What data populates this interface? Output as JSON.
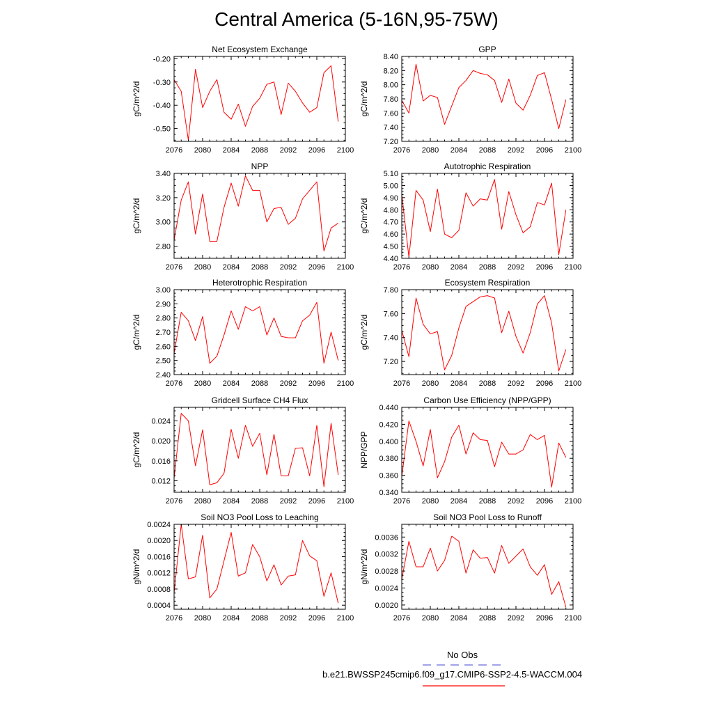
{
  "page": {
    "title": "Central America (5-16N,95-75W)"
  },
  "legend": {
    "obs_label": "No Obs",
    "obs_color": "#6a6adf",
    "case_label": "b.e21.BWSSP245cmip6.f09_g17.CMIP6-SSP2-4.5-WACCM.004",
    "case_color": "#ff0000"
  },
  "chart_data": [
    {
      "type": "line",
      "title": "Net Ecosystem Exchange",
      "ylabel": "gC/m^2/d",
      "xlim": [
        2076,
        2100
      ],
      "xticks": [
        2076,
        2080,
        2084,
        2088,
        2092,
        2096,
        2100
      ],
      "ylim": [
        -0.555,
        -0.19
      ],
      "yticks": [
        -0.5,
        -0.4,
        -0.3,
        -0.2
      ],
      "ytick_labels": [
        "-0.50",
        "-0.40",
        "-0.30",
        "-0.20"
      ],
      "color": "#ff0000",
      "x": [
        2076,
        2077,
        2078,
        2079,
        2080,
        2081,
        2082,
        2083,
        2084,
        2085,
        2086,
        2087,
        2088,
        2089,
        2090,
        2091,
        2092,
        2093,
        2094,
        2095,
        2096,
        2097,
        2098,
        2099
      ],
      "values": [
        -0.29,
        -0.34,
        -0.55,
        -0.245,
        -0.41,
        -0.34,
        -0.29,
        -0.43,
        -0.46,
        -0.395,
        -0.49,
        -0.405,
        -0.37,
        -0.31,
        -0.3,
        -0.44,
        -0.305,
        -0.34,
        -0.39,
        -0.43,
        -0.41,
        -0.26,
        -0.23,
        -0.47
      ]
    },
    {
      "type": "line",
      "title": "GPP",
      "ylabel": "gC/m^2/d",
      "xlim": [
        2076,
        2100
      ],
      "xticks": [
        2076,
        2080,
        2084,
        2088,
        2092,
        2096,
        2100
      ],
      "ylim": [
        7.2,
        8.4
      ],
      "yticks": [
        7.2,
        7.4,
        7.6,
        7.8,
        8.0,
        8.2,
        8.4
      ],
      "ytick_labels": [
        "7.20",
        "7.40",
        "7.60",
        "7.80",
        "8.00",
        "8.20",
        "8.40"
      ],
      "color": "#ff0000",
      "x": [
        2076,
        2077,
        2078,
        2079,
        2080,
        2081,
        2082,
        2083,
        2084,
        2085,
        2086,
        2087,
        2088,
        2089,
        2090,
        2091,
        2092,
        2093,
        2094,
        2095,
        2096,
        2097,
        2098,
        2099
      ],
      "values": [
        7.78,
        7.6,
        8.29,
        7.77,
        7.85,
        7.82,
        7.44,
        7.7,
        7.96,
        8.06,
        8.2,
        8.16,
        8.14,
        8.06,
        7.75,
        8.08,
        7.74,
        7.64,
        7.85,
        8.13,
        8.17,
        7.79,
        7.38,
        7.79
      ]
    },
    {
      "type": "line",
      "title": "NPP",
      "ylabel": "gC/m^2/d",
      "xlim": [
        2076,
        2100
      ],
      "xticks": [
        2076,
        2080,
        2084,
        2088,
        2092,
        2096,
        2100
      ],
      "ylim": [
        2.7,
        3.4
      ],
      "yticks": [
        2.8,
        3.0,
        3.2,
        3.4
      ],
      "ytick_labels": [
        "2.80",
        "3.00",
        "3.20",
        "3.40"
      ],
      "color": "#ff0000",
      "x": [
        2076,
        2077,
        2078,
        2079,
        2080,
        2081,
        2082,
        2083,
        2084,
        2085,
        2086,
        2087,
        2088,
        2089,
        2090,
        2091,
        2092,
        2093,
        2094,
        2095,
        2096,
        2097,
        2098,
        2099
      ],
      "values": [
        2.85,
        3.18,
        3.33,
        2.9,
        3.23,
        2.84,
        2.84,
        3.12,
        3.32,
        3.13,
        3.38,
        3.26,
        3.26,
        3.0,
        3.11,
        3.12,
        2.98,
        3.03,
        3.19,
        3.26,
        3.33,
        2.76,
        2.95,
        2.99
      ]
    },
    {
      "type": "line",
      "title": "Autotrophic Respiration",
      "ylabel": "gC/m^2/d",
      "xlim": [
        2076,
        2100
      ],
      "xticks": [
        2076,
        2080,
        2084,
        2088,
        2092,
        2096,
        2100
      ],
      "ylim": [
        4.4,
        5.1
      ],
      "yticks": [
        4.4,
        4.5,
        4.6,
        4.7,
        4.8,
        4.9,
        5.0,
        5.1
      ],
      "ytick_labels": [
        "4.40",
        "4.50",
        "4.60",
        "4.70",
        "4.80",
        "4.90",
        "5.00",
        "5.10"
      ],
      "color": "#ff0000",
      "x": [
        2076,
        2077,
        2078,
        2079,
        2080,
        2081,
        2082,
        2083,
        2084,
        2085,
        2086,
        2087,
        2088,
        2089,
        2090,
        2091,
        2092,
        2093,
        2094,
        2095,
        2096,
        2097,
        2098,
        2099
      ],
      "values": [
        4.93,
        4.41,
        4.96,
        4.88,
        4.62,
        4.97,
        4.6,
        4.57,
        4.63,
        4.94,
        4.83,
        4.89,
        4.88,
        5.05,
        4.64,
        4.95,
        4.76,
        4.61,
        4.66,
        4.86,
        4.84,
        5.02,
        4.43,
        4.8
      ]
    },
    {
      "type": "line",
      "title": "Heterotrophic Respiration",
      "ylabel": "gC/m^2/d",
      "xlim": [
        2076,
        2100
      ],
      "xticks": [
        2076,
        2080,
        2084,
        2088,
        2092,
        2096,
        2100
      ],
      "ylim": [
        2.4,
        3.0
      ],
      "yticks": [
        2.4,
        2.5,
        2.6,
        2.7,
        2.8,
        2.9,
        3.0
      ],
      "ytick_labels": [
        "2.40",
        "2.50",
        "2.60",
        "2.70",
        "2.80",
        "2.90",
        "3.00"
      ],
      "color": "#ff0000",
      "x": [
        2076,
        2077,
        2078,
        2079,
        2080,
        2081,
        2082,
        2083,
        2084,
        2085,
        2086,
        2087,
        2088,
        2089,
        2090,
        2091,
        2092,
        2093,
        2094,
        2095,
        2096,
        2097,
        2098,
        2099
      ],
      "values": [
        2.55,
        2.84,
        2.78,
        2.64,
        2.81,
        2.48,
        2.53,
        2.68,
        2.85,
        2.72,
        2.88,
        2.85,
        2.88,
        2.68,
        2.8,
        2.67,
        2.66,
        2.66,
        2.78,
        2.82,
        2.91,
        2.48,
        2.7,
        2.5
      ]
    },
    {
      "type": "line",
      "title": "Ecosystem Respiration",
      "ylabel": "gC/m^2/d",
      "xlim": [
        2076,
        2100
      ],
      "xticks": [
        2076,
        2080,
        2084,
        2088,
        2092,
        2096,
        2100
      ],
      "ylim": [
        7.09,
        7.8
      ],
      "yticks": [
        7.2,
        7.4,
        7.6,
        7.8
      ],
      "ytick_labels": [
        "7.20",
        "7.40",
        "7.60",
        "7.80"
      ],
      "color": "#ff0000",
      "x": [
        2076,
        2077,
        2078,
        2079,
        2080,
        2081,
        2082,
        2083,
        2084,
        2085,
        2086,
        2087,
        2088,
        2089,
        2090,
        2091,
        2092,
        2093,
        2094,
        2095,
        2096,
        2097,
        2098,
        2099
      ],
      "values": [
        7.46,
        7.24,
        7.73,
        7.51,
        7.43,
        7.45,
        7.13,
        7.25,
        7.48,
        7.66,
        7.7,
        7.74,
        7.75,
        7.73,
        7.44,
        7.62,
        7.41,
        7.27,
        7.44,
        7.68,
        7.75,
        7.52,
        7.12,
        7.3
      ]
    },
    {
      "type": "line",
      "title": "Gridcell Surface CH4 Flux",
      "ylabel": "gC/m^2/d",
      "xlim": [
        2076,
        2100
      ],
      "xticks": [
        2076,
        2080,
        2084,
        2088,
        2092,
        2096,
        2100
      ],
      "ylim": [
        0.0097,
        0.0267
      ],
      "yticks": [
        0.012,
        0.016,
        0.02,
        0.024
      ],
      "ytick_labels": [
        "0.012",
        "0.016",
        "0.020",
        "0.024"
      ],
      "color": "#ff0000",
      "x": [
        2076,
        2077,
        2078,
        2079,
        2080,
        2081,
        2082,
        2083,
        2084,
        2085,
        2086,
        2087,
        2088,
        2089,
        2090,
        2091,
        2092,
        2093,
        2094,
        2095,
        2096,
        2097,
        2098,
        2099
      ],
      "values": [
        0.0125,
        0.0255,
        0.024,
        0.015,
        0.0222,
        0.0112,
        0.0116,
        0.0135,
        0.0223,
        0.0165,
        0.0231,
        0.0189,
        0.0215,
        0.0132,
        0.0213,
        0.013,
        0.013,
        0.0185,
        0.0186,
        0.013,
        0.0231,
        0.0108,
        0.0235,
        0.0132
      ]
    },
    {
      "type": "line",
      "title": "Carbon Use Efficiency (NPP/GPP)",
      "ylabel": "NPP/GPP",
      "xlim": [
        2076,
        2100
      ],
      "xticks": [
        2076,
        2080,
        2084,
        2088,
        2092,
        2096,
        2100
      ],
      "ylim": [
        0.34,
        0.44
      ],
      "yticks": [
        0.34,
        0.36,
        0.38,
        0.4,
        0.42,
        0.44
      ],
      "ytick_labels": [
        "0.340",
        "0.360",
        "0.380",
        "0.400",
        "0.420",
        "0.440"
      ],
      "color": "#ff0000",
      "x": [
        2076,
        2077,
        2078,
        2079,
        2080,
        2081,
        2082,
        2083,
        2084,
        2085,
        2086,
        2087,
        2088,
        2089,
        2090,
        2091,
        2092,
        2093,
        2094,
        2095,
        2096,
        2097,
        2098,
        2099
      ],
      "values": [
        0.358,
        0.424,
        0.4,
        0.371,
        0.414,
        0.357,
        0.376,
        0.405,
        0.419,
        0.385,
        0.41,
        0.402,
        0.401,
        0.37,
        0.399,
        0.385,
        0.385,
        0.39,
        0.408,
        0.402,
        0.407,
        0.346,
        0.398,
        0.381
      ]
    },
    {
      "type": "line",
      "title": "Soil NO3 Pool Loss to Leaching",
      "ylabel": "gN/m^2/d",
      "xlim": [
        2076,
        2100
      ],
      "xticks": [
        2076,
        2080,
        2084,
        2088,
        2092,
        2096,
        2100
      ],
      "ylim": [
        0.0003,
        0.0024
      ],
      "yticks": [
        0.0004,
        0.0008,
        0.0012,
        0.0016,
        0.002,
        0.0024
      ],
      "ytick_labels": [
        "0.0004",
        "0.0008",
        "0.0012",
        "0.0016",
        "0.0020",
        "0.0024"
      ],
      "color": "#ff0000",
      "x": [
        2076,
        2077,
        2078,
        2079,
        2080,
        2081,
        2082,
        2083,
        2084,
        2085,
        2086,
        2087,
        2088,
        2089,
        2090,
        2091,
        2092,
        2093,
        2094,
        2095,
        2096,
        2097,
        2098,
        2099
      ],
      "values": [
        0.0007,
        0.0024,
        0.00105,
        0.0011,
        0.00213,
        0.00058,
        0.0008,
        0.0015,
        0.0022,
        0.00112,
        0.0012,
        0.0019,
        0.0016,
        0.001,
        0.0014,
        0.0009,
        0.00112,
        0.00115,
        0.002,
        0.00162,
        0.0015,
        0.00062,
        0.0012,
        0.00045
      ]
    },
    {
      "type": "line",
      "title": "Soil NO3 Pool Loss to Runoff",
      "ylabel": "gN/m^2/d",
      "xlim": [
        2076,
        2100
      ],
      "xticks": [
        2076,
        2080,
        2084,
        2088,
        2092,
        2096,
        2100
      ],
      "ylim": [
        0.0019,
        0.0039
      ],
      "yticks": [
        0.002,
        0.0024,
        0.0028,
        0.0032,
        0.0036
      ],
      "ytick_labels": [
        "0.0020",
        "0.0024",
        "0.0028",
        "0.0032",
        "0.0036"
      ],
      "color": "#ff0000",
      "x": [
        2076,
        2077,
        2078,
        2079,
        2080,
        2081,
        2082,
        2083,
        2084,
        2085,
        2086,
        2087,
        2088,
        2089,
        2090,
        2091,
        2092,
        2093,
        2094,
        2095,
        2096,
        2097,
        2098,
        2099
      ],
      "values": [
        0.0026,
        0.0035,
        0.0029,
        0.0029,
        0.00334,
        0.0028,
        0.00305,
        0.00362,
        0.0035,
        0.00275,
        0.0033,
        0.0031,
        0.00312,
        0.00275,
        0.0034,
        0.00298,
        0.00315,
        0.00332,
        0.0029,
        0.0027,
        0.00295,
        0.00225,
        0.00255,
        0.00195
      ]
    }
  ]
}
